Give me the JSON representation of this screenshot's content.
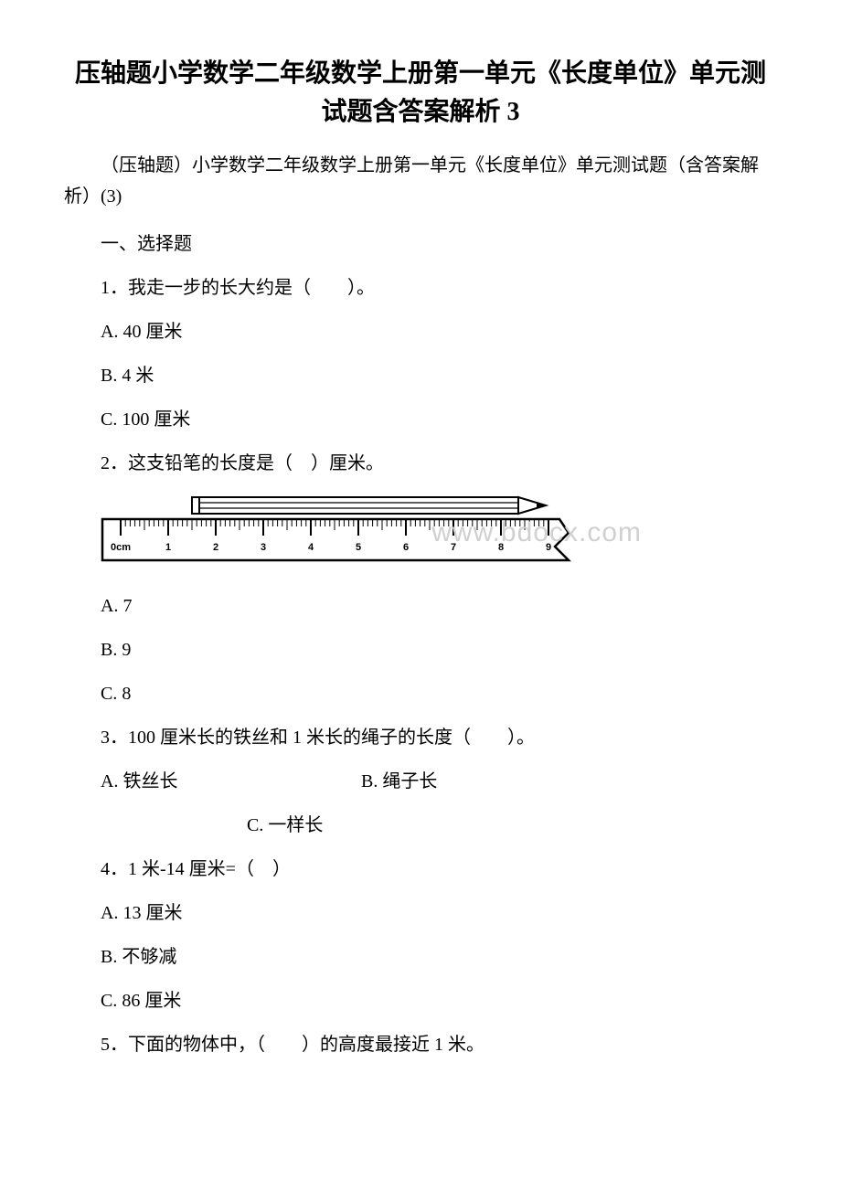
{
  "title": "压轴题小学数学二年级数学上册第一单元《长度单位》单元测试题含答案解析 3",
  "subtitle": "（压轴题）小学数学二年级数学上册第一单元《长度单位》单元测试题（含答案解析）(3)",
  "section_heading": "一、选择题",
  "q1": {
    "text": "1．我走一步的长大约是（　　）。",
    "a": "A. 40 厘米",
    "b": "B. 4 米",
    "c": "C. 100 厘米"
  },
  "q2": {
    "text": "2．这支铅笔的长度是（　）厘米。",
    "a": "A. 7",
    "b": "B. 9",
    "c": "C. 8"
  },
  "q3": {
    "text": "3．100 厘米长的铁丝和 1 米长的绳子的长度（　　）。",
    "a": "A. 铁丝长",
    "b": "B. 绳子长",
    "c": "C. 一样长"
  },
  "q4": {
    "text": "4．1 米-14 厘米=（　）",
    "a": "A. 13 厘米",
    "b": "B. 不够减",
    "c": "C. 86 厘米"
  },
  "q5": {
    "text": "5．下面的物体中，（　　）的高度最接近 1 米。"
  },
  "ruler": {
    "ticks": [
      "0cm",
      "1",
      "2",
      "3",
      "4",
      "5",
      "6",
      "7",
      "8",
      "9"
    ],
    "pencil_start": 2,
    "pencil_end": 9,
    "watermark": "www.bdocx.com",
    "stroke": "#000000",
    "fill": "#ffffff",
    "tick_fontsize": 11
  }
}
